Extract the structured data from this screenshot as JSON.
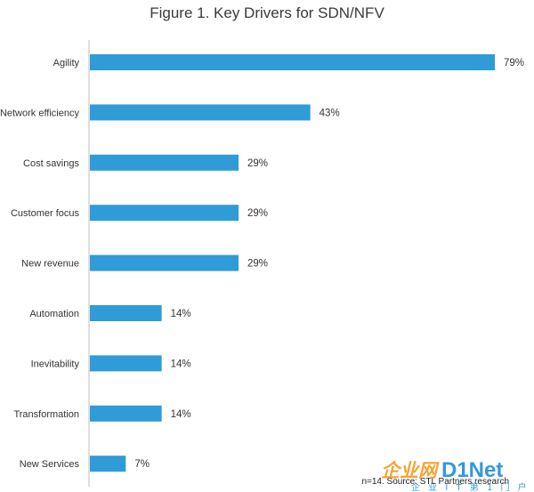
{
  "chart_data": {
    "type": "bar",
    "orientation": "horizontal",
    "title": "Figure 1. Key Drivers for SDN/NFV",
    "categories": [
      "Agility",
      "Network efficiency",
      "Cost savings",
      "Customer focus",
      "New revenue",
      "Automation",
      "Inevitability",
      "Transformation",
      "New Services"
    ],
    "values": [
      79,
      43,
      29,
      29,
      29,
      14,
      14,
      14,
      7
    ],
    "value_labels": [
      "79%",
      "43%",
      "29%",
      "29%",
      "29%",
      "14%",
      "14%",
      "14%",
      "7%"
    ],
    "unit": "%",
    "xlim": [
      0,
      79
    ],
    "grid": false,
    "bar_color": "#2f9bd7",
    "source": "n=14. Source: STL Partners research"
  },
  "watermark": {
    "logo_text": "企业网D1Net",
    "sub_text": "企 业 I T 第 1 门 户",
    "colors": {
      "orange": "#f39c1f",
      "blue": "#1f8fd8"
    }
  }
}
